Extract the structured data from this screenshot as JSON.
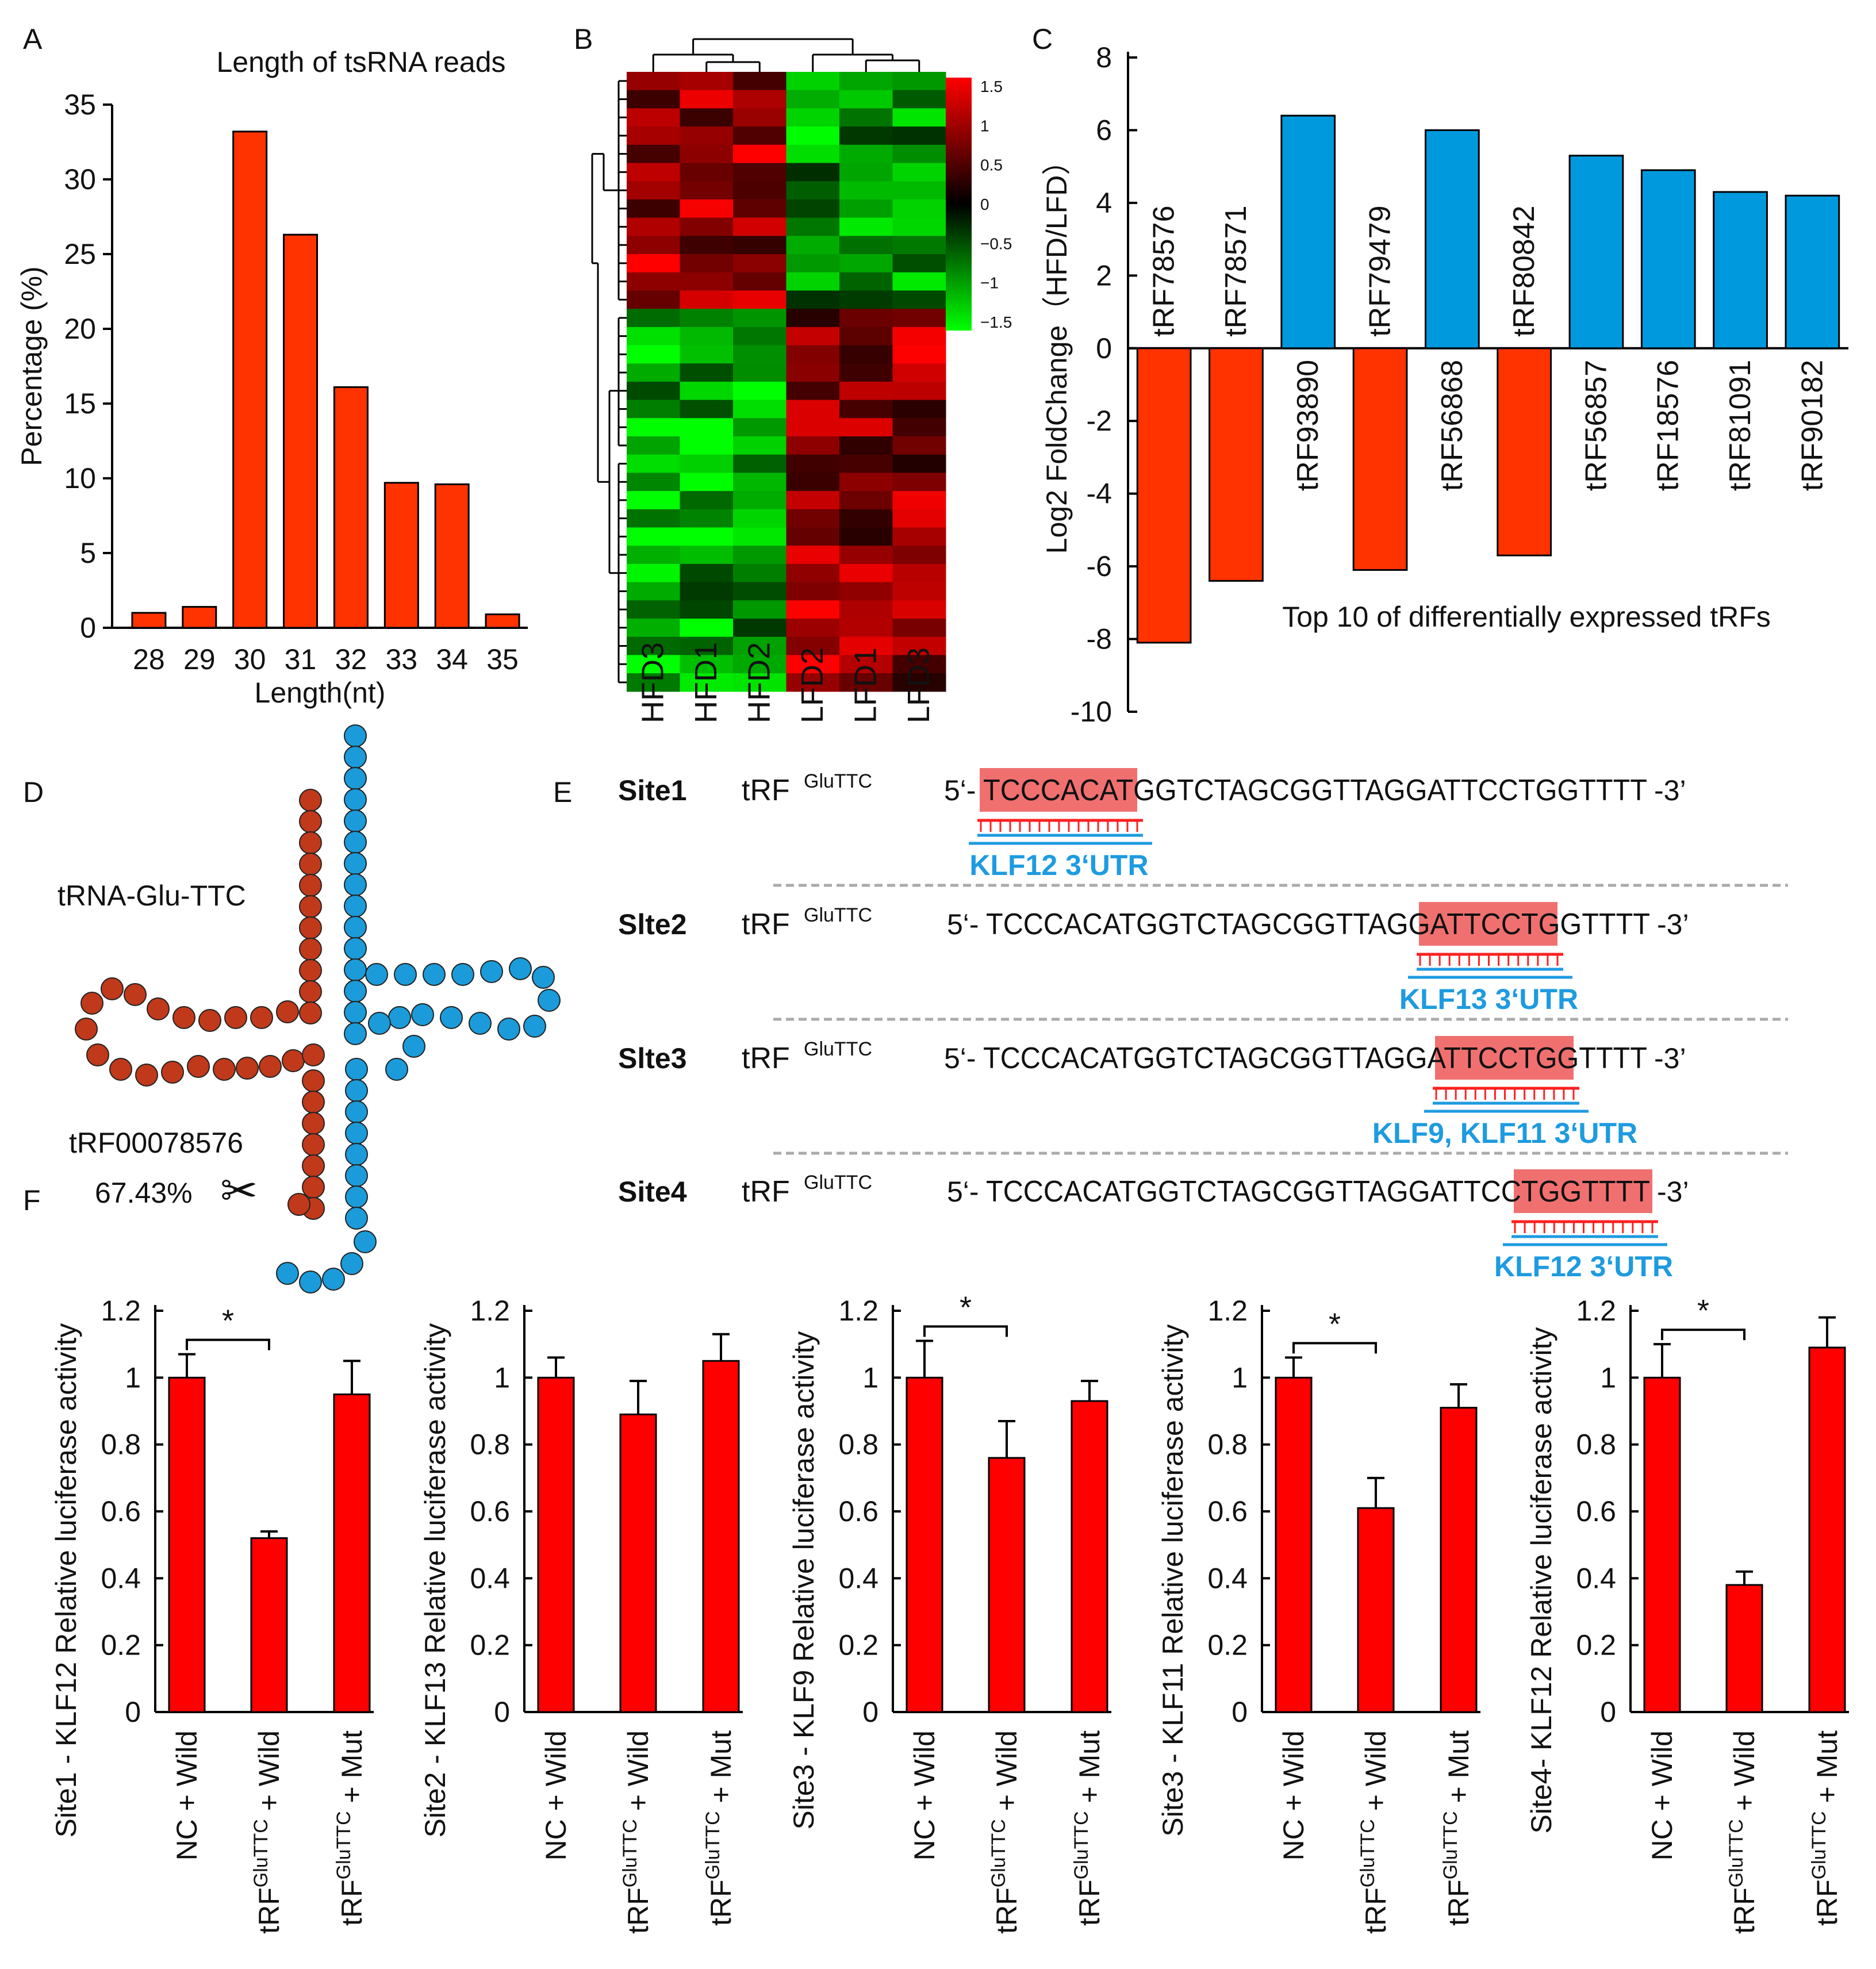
{
  "panels": {
    "A": "A",
    "B": "B",
    "C": "C",
    "D": "D",
    "E": "E",
    "F": "F"
  },
  "chart_data": [
    {
      "id": "A",
      "type": "bar",
      "title": "Length of tsRNA reads",
      "xlabel": "Length(nt)",
      "ylabel": "Percentage (%)",
      "categories": [
        "28",
        "29",
        "30",
        "31",
        "32",
        "33",
        "34",
        "35"
      ],
      "values": [
        1.0,
        1.4,
        33.2,
        26.3,
        16.1,
        9.7,
        9.6,
        0.9
      ],
      "ylim": [
        0,
        35
      ],
      "yticks": [
        0,
        5,
        10,
        15,
        20,
        25,
        30,
        35
      ],
      "color": "#FF3300"
    },
    {
      "id": "B",
      "type": "heatmap",
      "columns": [
        "HFD3",
        "HFD1",
        "HFD2",
        "LFD2",
        "LFD1",
        "LFD3"
      ],
      "colorbar_ticks": [
        "1.5",
        "1",
        "0.5",
        "0",
        "−0.5",
        "−1",
        "−1.5"
      ],
      "colorbar_range": [
        -1.5,
        1.5
      ],
      "rows": 34,
      "groups": [
        {
          "rows": 13,
          "pattern": "HFD high, LFD low"
        },
        {
          "rows": 8,
          "pattern": "HFD low, LFD high"
        },
        {
          "rows": 13,
          "pattern": "HFD low, LFD high"
        }
      ]
    },
    {
      "id": "C",
      "type": "bar",
      "title": "Top 10 of differentially expressed tRFs",
      "ylabel": "Log2 FoldChange（HFD/LFD）",
      "categories": [
        "tRF78576",
        "tRF78571",
        "tRF93890",
        "tRF79479",
        "tRF56868",
        "tRF80842",
        "tRF56857",
        "tRF18576",
        "tRF81091",
        "tRF90182"
      ],
      "values": [
        -8.1,
        -6.4,
        6.4,
        -6.1,
        6.0,
        -5.7,
        5.3,
        4.9,
        4.3,
        4.2
      ],
      "ylim": [
        -10,
        8
      ],
      "yticks": [
        8,
        6,
        4,
        2,
        0,
        -2,
        -4,
        -6,
        -8,
        -10
      ],
      "down_color": "#FF3300",
      "up_color": "#0099DD"
    },
    {
      "id": "F",
      "type": "bar",
      "ylim": [
        0,
        1.2
      ],
      "yticks": [
        "0",
        "0.2",
        "0.4",
        "0.6",
        "0.8",
        "1",
        "1.2"
      ],
      "color": "#FF0000",
      "charts": [
        {
          "ylabel": "Site1 - KLF12 Relative luciferase activity",
          "values": [
            1.0,
            0.52,
            0.95
          ],
          "errors": [
            0.07,
            0.02,
            0.1
          ],
          "sig": "*"
        },
        {
          "ylabel": "Site2 - KLF13 Relative luciferase activity",
          "values": [
            1.0,
            0.89,
            1.05
          ],
          "errors": [
            0.06,
            0.1,
            0.08
          ],
          "sig": ""
        },
        {
          "ylabel": "Site3 - KLF9 Relative luciferase activity",
          "values": [
            1.0,
            0.76,
            0.93
          ],
          "errors": [
            0.11,
            0.11,
            0.06
          ],
          "sig": "*"
        },
        {
          "ylabel": "Site3 - KLF11 Relative luciferase activity",
          "values": [
            1.0,
            0.61,
            0.91
          ],
          "errors": [
            0.06,
            0.09,
            0.07
          ],
          "sig": "*"
        },
        {
          "ylabel": "Site4- KLF12 Relative luciferase activity",
          "values": [
            1.0,
            0.38,
            1.09
          ],
          "errors": [
            0.1,
            0.04,
            0.09
          ],
          "sig": "*"
        }
      ],
      "categories": [
        {
          "main": "NC + Wild",
          "sup": ""
        },
        {
          "main": "tRF",
          "sup": "GluTTC",
          "tail": " + Wild"
        },
        {
          "main": "tRF",
          "sup": "GluTTC",
          "tail": " + Mut"
        }
      ]
    }
  ],
  "panelD": {
    "trna": "tRNA-Glu-TTC",
    "trf": "tRF00078576",
    "percent": "67.43%",
    "scissors": "✂"
  },
  "panelE": {
    "prefix": "tRF",
    "sup": "GluTTC",
    "five": "5‘-",
    "three": "-3’",
    "sequence": "TCCCACATGGTCTAGCGGTTAGGATTCCTGGTTTT",
    "sites": [
      {
        "label": "Site1",
        "utr": "KLF12 3‘UTR",
        "start": 0,
        "len": 8
      },
      {
        "label": "Slte2",
        "utr": "KLF13 3‘UTR",
        "start": 23,
        "len": 7
      },
      {
        "label": "Slte3",
        "utr": "KLF9, KLF11 3‘UTR",
        "start": 24,
        "len": 7
      },
      {
        "label": "Site4",
        "utr": "KLF12 3‘UTR",
        "start": 28,
        "len": 7
      }
    ]
  }
}
